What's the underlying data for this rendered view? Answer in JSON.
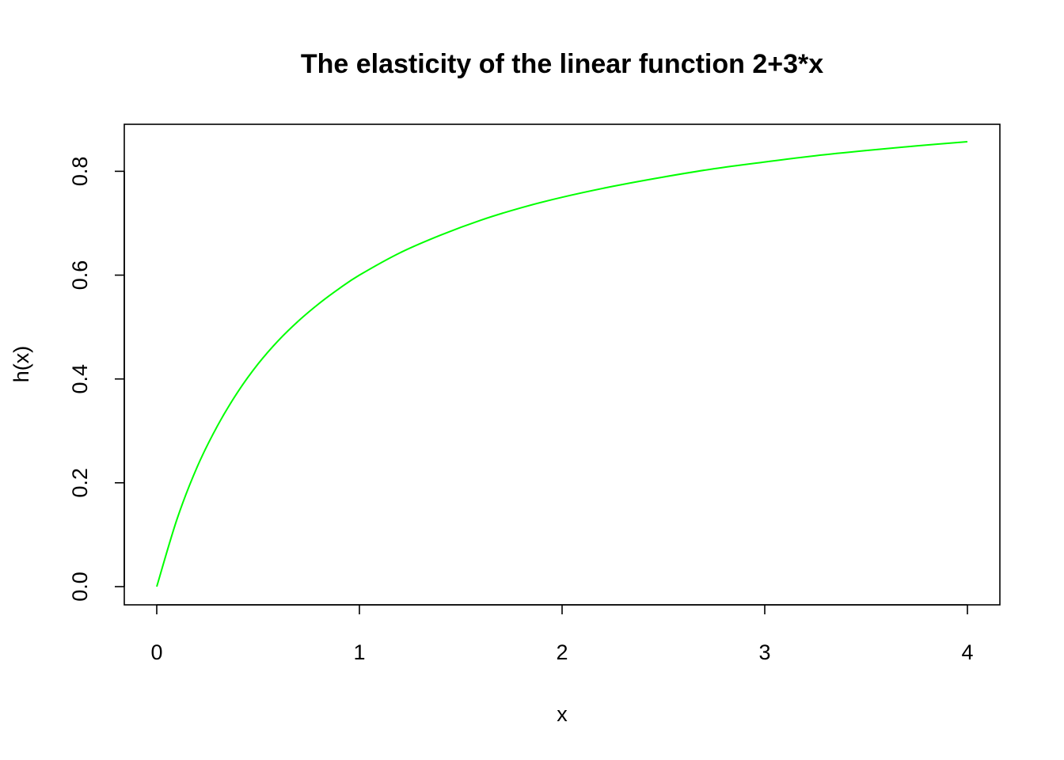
{
  "chart_data": {
    "type": "line",
    "title": "The elasticity of the linear function 2+3*x",
    "xlabel": "x",
    "ylabel": "h(x)",
    "xlim": [
      0,
      4
    ],
    "ylim": [
      0,
      0.857
    ],
    "grid": false,
    "x_ticks": [
      {
        "value": 0,
        "label": "0"
      },
      {
        "value": 1,
        "label": "1"
      },
      {
        "value": 2,
        "label": "2"
      },
      {
        "value": 3,
        "label": "3"
      },
      {
        "value": 4,
        "label": "4"
      }
    ],
    "y_ticks": [
      {
        "value": 0,
        "label": "0.0"
      },
      {
        "value": 0.2,
        "label": "0.2"
      },
      {
        "value": 0.4,
        "label": "0.4"
      },
      {
        "value": 0.6,
        "label": "0.6"
      },
      {
        "value": 0.8,
        "label": "0.8"
      }
    ],
    "series": [
      {
        "color": "#00ff00",
        "x": [
          0,
          0.1,
          0.2,
          0.3,
          0.4,
          0.5,
          0.6,
          0.7,
          0.8,
          0.9,
          1.0,
          1.2,
          1.4,
          1.6,
          1.8,
          2.0,
          2.25,
          2.5,
          2.75,
          3.0,
          3.25,
          3.5,
          3.75,
          4.0
        ],
        "values": [
          0,
          0.13,
          0.231,
          0.31,
          0.375,
          0.429,
          0.474,
          0.512,
          0.545,
          0.574,
          0.6,
          0.643,
          0.677,
          0.706,
          0.73,
          0.75,
          0.771,
          0.789,
          0.805,
          0.818,
          0.83,
          0.84,
          0.849,
          0.857
        ]
      }
    ]
  }
}
